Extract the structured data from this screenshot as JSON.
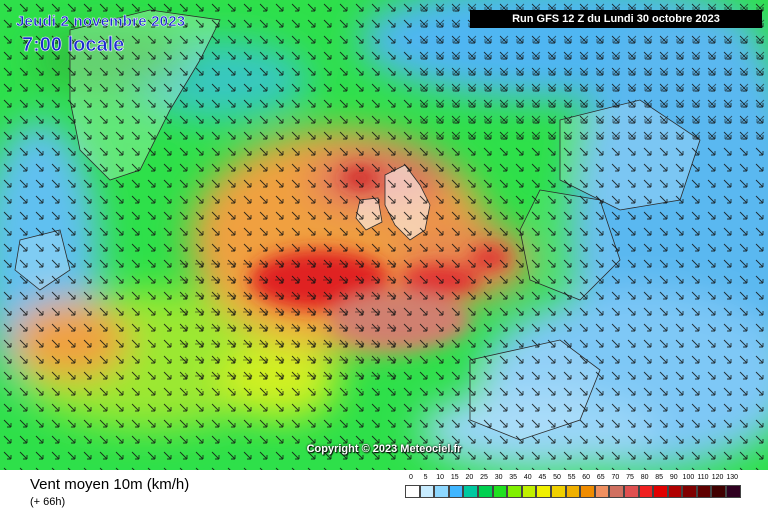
{
  "header": {
    "date": "Jeudi 2 novembre 2023",
    "time": "7:00 locale",
    "run": "Run GFS 12 Z du Lundi 30 octobre 2023"
  },
  "copyright": "Copyright © 2023 Meteociel.fr",
  "footer": {
    "title": "Vent moyen 10m (km/h)",
    "subtitle": "(+ 66h)"
  },
  "legend": {
    "labels": [
      "0",
      "5",
      "10",
      "15",
      "20",
      "25",
      "30",
      "35",
      "40",
      "45",
      "50",
      "55",
      "60",
      "65",
      "70",
      "75",
      "80",
      "85",
      "90",
      "100",
      "110",
      "120",
      "130"
    ],
    "colors": [
      "#ffffff",
      "#c8ecff",
      "#8ed8ff",
      "#40b6ff",
      "#00c8a0",
      "#00d050",
      "#20e020",
      "#80f000",
      "#c0f000",
      "#f0f000",
      "#f0d000",
      "#f0b000",
      "#f08c00",
      "#f09060",
      "#d07060",
      "#e05050",
      "#f02020",
      "#e00000",
      "#b00000",
      "#800000",
      "#600000",
      "#400000",
      "#300020"
    ]
  }
}
